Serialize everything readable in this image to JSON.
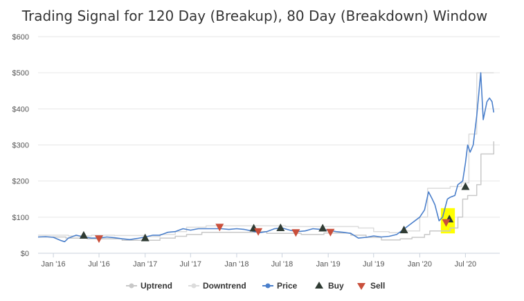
{
  "chart_data": {
    "type": "line",
    "title": "Trading Signal for 120 Day (Breakup), 80 Day (Breakdown) Window",
    "xlabel": "",
    "ylabel": "",
    "x_range": [
      "2015-11-01",
      "2020-11-15"
    ],
    "x_ticks": [
      {
        "date": "2016-01-01",
        "label": "Jan '16"
      },
      {
        "date": "2016-07-01",
        "label": "Jul '16"
      },
      {
        "date": "2017-01-01",
        "label": "Jan '17"
      },
      {
        "date": "2017-07-01",
        "label": "Jul '17"
      },
      {
        "date": "2018-01-01",
        "label": "Jan '18"
      },
      {
        "date": "2018-07-01",
        "label": "Jul '18"
      },
      {
        "date": "2019-01-01",
        "label": "Jan '19"
      },
      {
        "date": "2019-07-01",
        "label": "Jul '19"
      },
      {
        "date": "2020-01-01",
        "label": "Jan '20"
      },
      {
        "date": "2020-07-01",
        "label": "Jul '20"
      }
    ],
    "ylim": [
      0,
      600
    ],
    "y_ticks": [
      {
        "value": 0,
        "label": "$0"
      },
      {
        "value": 100,
        "label": "$100"
      },
      {
        "value": 200,
        "label": "$200"
      },
      {
        "value": 300,
        "label": "$300"
      },
      {
        "value": 400,
        "label": "$400"
      },
      {
        "value": 500,
        "label": "$500"
      },
      {
        "value": 600,
        "label": "$600"
      }
    ],
    "grid": "horizontal",
    "legend_position": "bottom-center",
    "series": [
      {
        "name": "Uptrend",
        "kind": "step",
        "color": "#c8c8c8",
        "points": [
          [
            "2015-11-01",
            45
          ],
          [
            "2016-02-20",
            42
          ],
          [
            "2016-04-15",
            42
          ],
          [
            "2016-05-15",
            40
          ],
          [
            "2016-10-01",
            36
          ],
          [
            "2017-01-15",
            36
          ],
          [
            "2017-03-01",
            42
          ],
          [
            "2017-05-01",
            47
          ],
          [
            "2017-06-15",
            52
          ],
          [
            "2017-08-15",
            58
          ],
          [
            "2018-03-15",
            60
          ],
          [
            "2018-05-01",
            55
          ],
          [
            "2018-09-15",
            52
          ],
          [
            "2018-12-15",
            56
          ],
          [
            "2019-04-01",
            50
          ],
          [
            "2019-06-01",
            44
          ],
          [
            "2019-08-01",
            37
          ],
          [
            "2019-10-15",
            40
          ],
          [
            "2019-12-01",
            44
          ],
          [
            "2020-01-20",
            52
          ],
          [
            "2020-02-10",
            62
          ],
          [
            "2020-03-15",
            62
          ],
          [
            "2020-05-01",
            70
          ],
          [
            "2020-06-01",
            100
          ],
          [
            "2020-06-20",
            150
          ],
          [
            "2020-07-10",
            160
          ],
          [
            "2020-08-15",
            190
          ],
          [
            "2020-09-01",
            275
          ],
          [
            "2020-10-15",
            275
          ],
          [
            "2020-10-22",
            310
          ]
        ]
      },
      {
        "name": "Downtrend",
        "kind": "step",
        "color": "#dcdcdc",
        "points": [
          [
            "2015-11-01",
            50
          ],
          [
            "2016-03-01",
            48
          ],
          [
            "2016-06-01",
            50
          ],
          [
            "2016-09-01",
            49
          ],
          [
            "2017-01-01",
            46
          ],
          [
            "2017-03-01",
            52
          ],
          [
            "2017-05-01",
            60
          ],
          [
            "2017-06-15",
            72
          ],
          [
            "2017-09-01",
            76
          ],
          [
            "2018-03-01",
            76
          ],
          [
            "2018-07-15",
            74
          ],
          [
            "2018-10-15",
            74
          ],
          [
            "2019-03-01",
            74
          ],
          [
            "2019-05-01",
            70
          ],
          [
            "2019-07-01",
            60
          ],
          [
            "2019-09-01",
            57
          ],
          [
            "2019-11-01",
            62
          ],
          [
            "2020-01-01",
            100
          ],
          [
            "2020-02-01",
            180
          ],
          [
            "2020-03-15",
            180
          ],
          [
            "2020-05-01",
            185
          ],
          [
            "2020-06-15",
            195
          ],
          [
            "2020-07-15",
            330
          ],
          [
            "2020-08-15",
            500
          ],
          [
            "2020-10-22",
            500
          ]
        ]
      },
      {
        "name": "Price",
        "kind": "line",
        "color": "#4a7fcb",
        "points": [
          [
            "2015-11-01",
            45
          ],
          [
            "2015-12-01",
            46
          ],
          [
            "2016-01-01",
            44
          ],
          [
            "2016-02-01",
            35
          ],
          [
            "2016-02-15",
            32
          ],
          [
            "2016-03-01",
            42
          ],
          [
            "2016-04-01",
            50
          ],
          [
            "2016-05-01",
            45
          ],
          [
            "2016-06-01",
            42
          ],
          [
            "2016-07-01",
            42
          ],
          [
            "2016-08-01",
            45
          ],
          [
            "2016-09-01",
            43
          ],
          [
            "2016-10-01",
            40
          ],
          [
            "2016-11-01",
            38
          ],
          [
            "2016-12-01",
            41
          ],
          [
            "2017-01-01",
            45
          ],
          [
            "2017-02-01",
            50
          ],
          [
            "2017-03-01",
            50
          ],
          [
            "2017-04-01",
            58
          ],
          [
            "2017-05-01",
            60
          ],
          [
            "2017-06-01",
            68
          ],
          [
            "2017-07-01",
            64
          ],
          [
            "2017-08-01",
            68
          ],
          [
            "2017-09-01",
            68
          ],
          [
            "2017-10-01",
            68
          ],
          [
            "2017-11-01",
            68
          ],
          [
            "2017-12-01",
            66
          ],
          [
            "2018-01-01",
            68
          ],
          [
            "2018-02-01",
            66
          ],
          [
            "2018-03-01",
            62
          ],
          [
            "2018-04-01",
            57
          ],
          [
            "2018-05-01",
            60
          ],
          [
            "2018-06-01",
            68
          ],
          [
            "2018-07-01",
            70
          ],
          [
            "2018-08-01",
            64
          ],
          [
            "2018-09-01",
            60
          ],
          [
            "2018-10-01",
            62
          ],
          [
            "2018-11-01",
            68
          ],
          [
            "2018-12-01",
            66
          ],
          [
            "2019-01-01",
            64
          ],
          [
            "2019-02-01",
            60
          ],
          [
            "2019-03-01",
            58
          ],
          [
            "2019-04-01",
            55
          ],
          [
            "2019-05-01",
            42
          ],
          [
            "2019-06-01",
            44
          ],
          [
            "2019-07-01",
            48
          ],
          [
            "2019-08-01",
            45
          ],
          [
            "2019-09-01",
            47
          ],
          [
            "2019-10-01",
            52
          ],
          [
            "2019-11-01",
            68
          ],
          [
            "2019-12-01",
            84
          ],
          [
            "2020-01-01",
            100
          ],
          [
            "2020-01-20",
            120
          ],
          [
            "2020-02-05",
            170
          ],
          [
            "2020-02-20",
            150
          ],
          [
            "2020-03-01",
            135
          ],
          [
            "2020-03-18",
            90
          ],
          [
            "2020-04-01",
            100
          ],
          [
            "2020-04-20",
            150
          ],
          [
            "2020-05-01",
            155
          ],
          [
            "2020-05-20",
            160
          ],
          [
            "2020-06-01",
            190
          ],
          [
            "2020-06-20",
            200
          ],
          [
            "2020-07-01",
            250
          ],
          [
            "2020-07-10",
            300
          ],
          [
            "2020-07-20",
            280
          ],
          [
            "2020-08-01",
            300
          ],
          [
            "2020-08-15",
            380
          ],
          [
            "2020-08-31",
            500
          ],
          [
            "2020-09-10",
            370
          ],
          [
            "2020-09-25",
            420
          ],
          [
            "2020-10-05",
            430
          ],
          [
            "2020-10-15",
            420
          ],
          [
            "2020-10-22",
            390
          ]
        ]
      },
      {
        "name": "Buy",
        "kind": "marker",
        "marker": "triangle-up",
        "color": "#2f3b33",
        "points": [
          [
            "2016-05-01",
            50
          ],
          [
            "2017-01-01",
            43
          ],
          [
            "2018-03-10",
            70
          ],
          [
            "2018-06-25",
            71
          ],
          [
            "2018-12-10",
            70
          ],
          [
            "2019-10-30",
            65
          ],
          [
            "2020-04-28",
            95
          ],
          [
            "2020-07-01",
            185
          ]
        ]
      },
      {
        "name": "Sell",
        "kind": "marker",
        "marker": "triangle-down",
        "color": "#c94f3b",
        "points": [
          [
            "2016-07-01",
            40
          ],
          [
            "2017-10-25",
            72
          ],
          [
            "2018-03-28",
            60
          ],
          [
            "2018-08-25",
            57
          ],
          [
            "2019-01-10",
            58
          ],
          [
            "2020-04-15",
            85
          ]
        ]
      }
    ],
    "highlight": {
      "color": "#ffff00",
      "x_from": "2020-03-25",
      "x_to": "2020-05-20",
      "y_from": 55,
      "y_to": 125
    }
  }
}
